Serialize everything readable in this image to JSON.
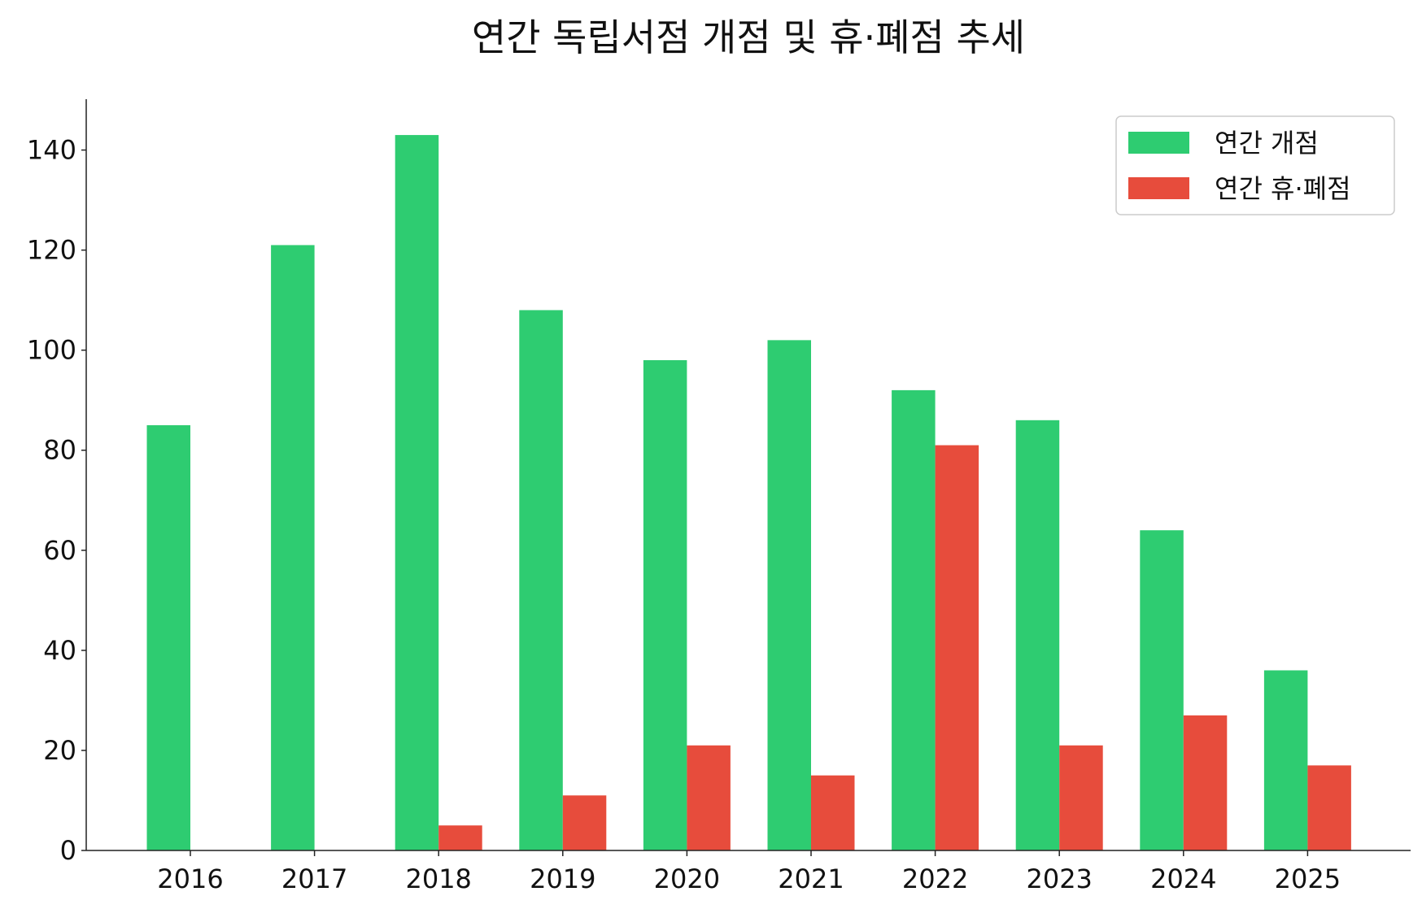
{
  "chart_data": {
    "type": "bar",
    "title": "연간 독립서점 개점 및 휴·폐점 추세",
    "xlabel": "",
    "ylabel": "",
    "categories": [
      "2016",
      "2017",
      "2018",
      "2019",
      "2020",
      "2021",
      "2022",
      "2023",
      "2024",
      "2025"
    ],
    "series": [
      {
        "name": "연간 개점",
        "color": "#2ecc71",
        "values": [
          85,
          121,
          143,
          108,
          98,
          102,
          92,
          86,
          64,
          36
        ]
      },
      {
        "name": "연간 휴·폐점",
        "color": "#e74c3c",
        "values": [
          0,
          0,
          5,
          11,
          21,
          15,
          81,
          21,
          27,
          17
        ]
      }
    ],
    "ylim": [
      0,
      150
    ],
    "yticks": [
      0,
      20,
      40,
      60,
      80,
      100,
      120,
      140
    ],
    "grid": false,
    "legend": "top-right"
  }
}
